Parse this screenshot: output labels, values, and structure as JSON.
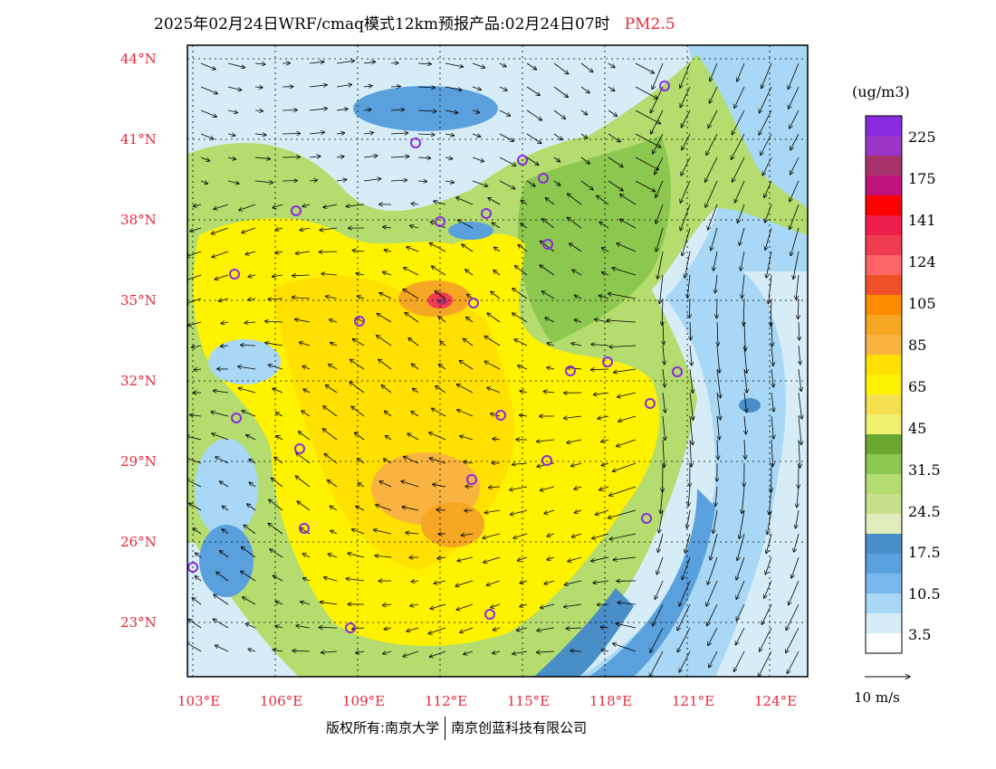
{
  "title": "2025年02月24日WRF/cmaq模式12km预报产品:02月24日07时",
  "pollutant": "PM2.5",
  "unit": "(ug/m3)",
  "lat_labels": [
    "44°N",
    "41°N",
    "38°N",
    "35°N",
    "32°N",
    "29°N",
    "26°N",
    "23°N"
  ],
  "lon_labels": [
    "103°E",
    "106°E",
    "109°E",
    "112°E",
    "115°E",
    "118°E",
    "121°E",
    "124°E"
  ],
  "colorbar": {
    "colors": [
      "#8a2be2",
      "#9a35c8",
      "#a8326a",
      "#c0127e",
      "#ff0000",
      "#f01e4a",
      "#f03c50",
      "#fd6464",
      "#f05028",
      "#ff8c00",
      "#f5a623",
      "#f8b340",
      "#ffe000",
      "#fff200",
      "#f5e050",
      "#f0f070",
      "#6aa832",
      "#8cc850",
      "#b4dc6e",
      "#c8e08c",
      "#e0ecbc",
      "#4a8ec8",
      "#5aa0dc",
      "#78b8ee",
      "#a8d8f5",
      "#d6edf8",
      "#ffffff"
    ],
    "labels": [
      "225",
      "175",
      "141",
      "124",
      "105",
      "85",
      "65",
      "45",
      "31.5",
      "24.5",
      "17.5",
      "10.5",
      "3.5"
    ]
  },
  "wind_scale_label": "10 m/s",
  "footer": {
    "left": "版权所有:南京大学",
    "right": "南京创蓝科技有限公司"
  }
}
